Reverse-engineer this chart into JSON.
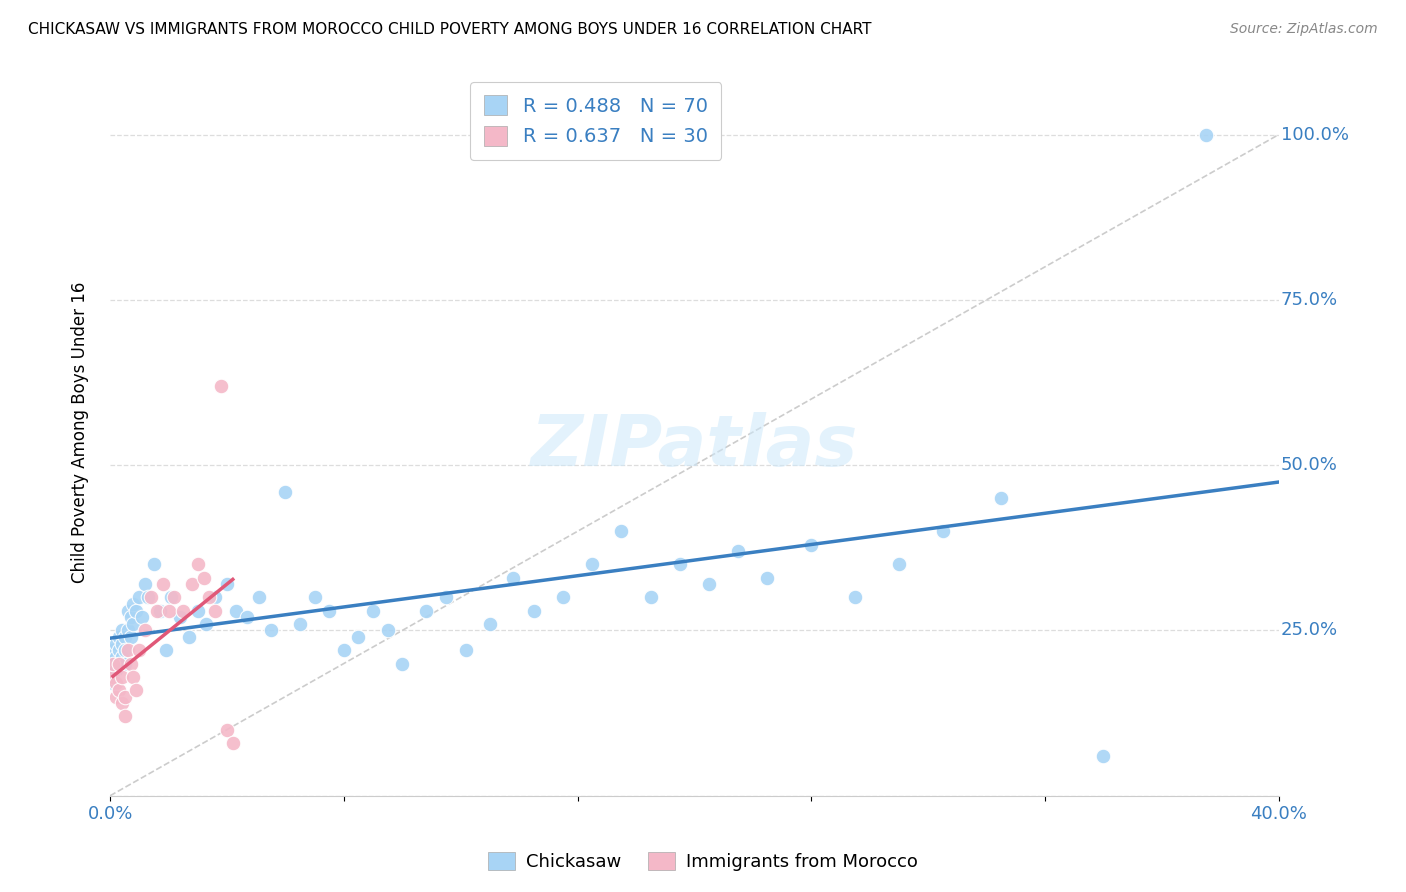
{
  "title": "CHICKASAW VS IMMIGRANTS FROM MOROCCO CHILD POVERTY AMONG BOYS UNDER 16 CORRELATION CHART",
  "source": "Source: ZipAtlas.com",
  "ylabel": "Child Poverty Among Boys Under 16",
  "xlim": [
    0.0,
    0.4
  ],
  "ylim": [
    0.0,
    1.1
  ],
  "xticks": [
    0.0,
    0.08,
    0.16,
    0.24,
    0.32,
    0.4
  ],
  "xtick_labels": [
    "0.0%",
    "",
    "",
    "",
    "",
    "40.0%"
  ],
  "yticks": [
    0.0,
    0.25,
    0.5,
    0.75,
    1.0
  ],
  "ytick_labels": [
    "",
    "25.0%",
    "50.0%",
    "75.0%",
    "100.0%"
  ],
  "r_chickasaw": 0.488,
  "n_chickasaw": 70,
  "r_morocco": 0.637,
  "n_morocco": 30,
  "color_chickasaw": "#a8d4f5",
  "color_morocco": "#f4b8c8",
  "line_color_chickasaw": "#3a7fc1",
  "line_color_morocco": "#e05878",
  "watermark": "ZIPatlas",
  "legend_label_1": "Chickasaw",
  "legend_label_2": "Immigrants from Morocco",
  "chickasaw_x": [
    0.001,
    0.001,
    0.001,
    0.002,
    0.002,
    0.002,
    0.003,
    0.003,
    0.003,
    0.004,
    0.004,
    0.004,
    0.005,
    0.005,
    0.005,
    0.006,
    0.006,
    0.007,
    0.007,
    0.008,
    0.008,
    0.009,
    0.01,
    0.011,
    0.012,
    0.013,
    0.015,
    0.017,
    0.019,
    0.021,
    0.024,
    0.027,
    0.03,
    0.033,
    0.036,
    0.04,
    0.043,
    0.047,
    0.051,
    0.055,
    0.06,
    0.065,
    0.07,
    0.075,
    0.08,
    0.085,
    0.09,
    0.095,
    0.1,
    0.108,
    0.115,
    0.122,
    0.13,
    0.138,
    0.145,
    0.155,
    0.165,
    0.175,
    0.185,
    0.195,
    0.205,
    0.215,
    0.225,
    0.24,
    0.255,
    0.27,
    0.285,
    0.305,
    0.34,
    0.375
  ],
  "chickasaw_y": [
    0.2,
    0.22,
    0.17,
    0.21,
    0.23,
    0.19,
    0.22,
    0.24,
    0.2,
    0.23,
    0.25,
    0.21,
    0.24,
    0.22,
    0.2,
    0.25,
    0.28,
    0.24,
    0.27,
    0.26,
    0.29,
    0.28,
    0.3,
    0.27,
    0.32,
    0.3,
    0.35,
    0.28,
    0.22,
    0.3,
    0.27,
    0.24,
    0.28,
    0.26,
    0.3,
    0.32,
    0.28,
    0.27,
    0.3,
    0.25,
    0.46,
    0.26,
    0.3,
    0.28,
    0.22,
    0.24,
    0.28,
    0.25,
    0.2,
    0.28,
    0.3,
    0.22,
    0.26,
    0.33,
    0.28,
    0.3,
    0.35,
    0.4,
    0.3,
    0.35,
    0.32,
    0.37,
    0.33,
    0.38,
    0.3,
    0.35,
    0.4,
    0.45,
    0.06,
    1.0
  ],
  "morocco_x": [
    0.001,
    0.001,
    0.002,
    0.002,
    0.003,
    0.003,
    0.004,
    0.004,
    0.005,
    0.005,
    0.006,
    0.007,
    0.008,
    0.009,
    0.01,
    0.012,
    0.014,
    0.016,
    0.018,
    0.02,
    0.022,
    0.025,
    0.028,
    0.03,
    0.032,
    0.034,
    0.036,
    0.038,
    0.04,
    0.042
  ],
  "morocco_y": [
    0.18,
    0.2,
    0.17,
    0.15,
    0.2,
    0.16,
    0.18,
    0.14,
    0.15,
    0.12,
    0.22,
    0.2,
    0.18,
    0.16,
    0.22,
    0.25,
    0.3,
    0.28,
    0.32,
    0.28,
    0.3,
    0.28,
    0.32,
    0.35,
    0.33,
    0.3,
    0.28,
    0.62,
    0.1,
    0.08
  ]
}
